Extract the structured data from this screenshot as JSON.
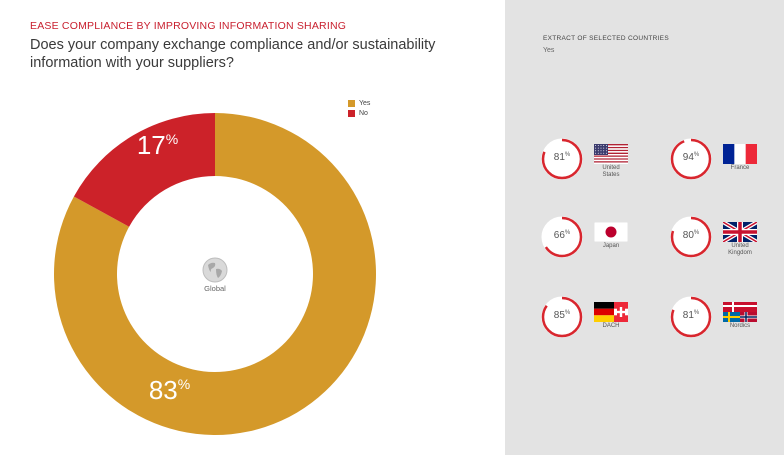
{
  "header": {
    "kicker": "EASE COMPLIANCE BY IMPROVING INFORMATION SHARING",
    "question": "Does your company exchange compliance and/or sustainability information with your suppliers?"
  },
  "colors": {
    "yes": "#d4992a",
    "no": "#cc2229",
    "ring": "#d8262e",
    "ring_track": "#ffffff"
  },
  "chart_data": [
    {
      "type": "pie",
      "donut": true,
      "categories": [
        "Yes",
        "No"
      ],
      "values": [
        83,
        17
      ],
      "value_labels": [
        "83%",
        "17%"
      ],
      "center_label": "Global",
      "legend": [
        "Yes",
        "No"
      ],
      "legend_position": "top-right"
    },
    {
      "type": "pie",
      "title": "EXTRACT OF SELECTED COUNTRIES",
      "subtitle": "Yes",
      "categories": [
        "United States",
        "France",
        "Japan",
        "United Kingdom",
        "DACH",
        "Nordics"
      ],
      "values": [
        81,
        94,
        66,
        80,
        85,
        81
      ]
    }
  ],
  "extract": {
    "title": "EXTRACT OF SELECTED COUNTRIES",
    "subtitle": "Yes",
    "countries": [
      {
        "name_lines": [
          "United",
          "States"
        ],
        "value": 81,
        "pct": "81",
        "flag": "us-flag-icon"
      },
      {
        "name_lines": [
          "France",
          ""
        ],
        "value": 94,
        "pct": "94",
        "flag": "france-flag-icon"
      },
      {
        "name_lines": [
          "Japan",
          ""
        ],
        "value": 66,
        "pct": "66",
        "flag": "japan-flag-icon"
      },
      {
        "name_lines": [
          "United",
          "Kingdom"
        ],
        "value": 80,
        "pct": "80",
        "flag": "uk-flag-icon"
      },
      {
        "name_lines": [
          "DACH",
          ""
        ],
        "value": 85,
        "pct": "85",
        "flag": "dach-flag-icon"
      },
      {
        "name_lines": [
          "Nordics",
          ""
        ],
        "value": 81,
        "pct": "81",
        "flag": "nordics-flag-icon"
      }
    ],
    "percent_symbol": "%"
  },
  "legend": {
    "yes": "Yes",
    "no": "No"
  },
  "global_label": "Global",
  "global_icon": "globe-icon"
}
